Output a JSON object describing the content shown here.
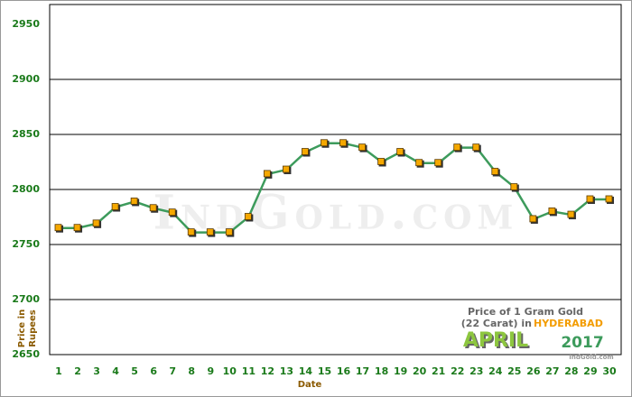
{
  "chart_data": {
    "type": "line",
    "categories": [
      "1",
      "2",
      "3",
      "4",
      "5",
      "6",
      "7",
      "8",
      "9",
      "10",
      "11",
      "12",
      "13",
      "14",
      "15",
      "16",
      "17",
      "18",
      "19",
      "20",
      "21",
      "22",
      "23",
      "24",
      "25",
      "26",
      "27",
      "28",
      "29",
      "30"
    ],
    "series": [
      {
        "color": "#3d9b5c",
        "marker_color": "#f5a800",
        "values": [
          2765,
          2765,
          2769,
          2784,
          2789,
          2783,
          2779,
          2761,
          2761,
          2761,
          2775,
          2814,
          2818,
          2834,
          2842,
          2842,
          2838,
          2825,
          2834,
          2824,
          2824,
          2838,
          2838,
          2816,
          2802,
          2773,
          2780,
          2777,
          2791,
          2791
        ]
      }
    ],
    "ylim": [
      2650,
      2950
    ],
    "yticks": [
      2650,
      2700,
      2750,
      2800,
      2850,
      2900,
      2950
    ],
    "grid": true,
    "xlabel": "Date",
    "ylabel": [
      "Price in",
      "Rupees"
    ],
    "watermark": "IndGold.com",
    "annotation": {
      "line1": "Price of 1 Gram Gold",
      "line2": "(22 Carat) in",
      "city": "HYDERABAD",
      "month": "APRIL",
      "year": "2017",
      "site": "IndGold.com"
    }
  }
}
